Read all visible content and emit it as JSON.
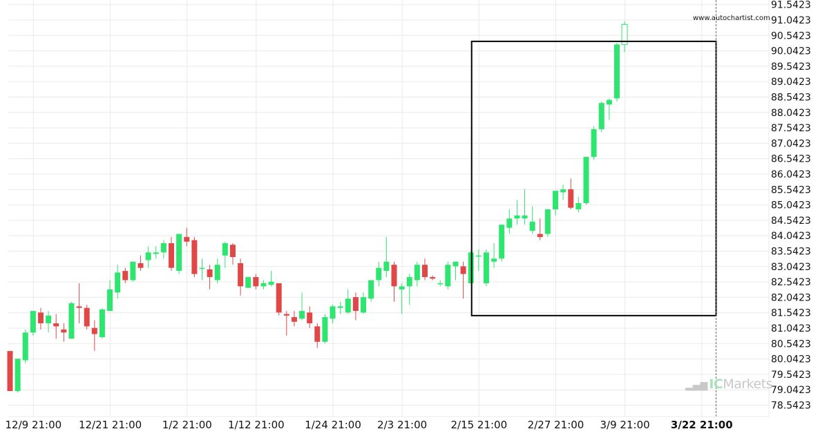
{
  "credit": "www.autochartist.com",
  "watermark": {
    "prefix": "IC",
    "suffix": "Markets",
    "bars": "▂▄▆"
  },
  "colors": {
    "up": "#2ee66f",
    "down": "#e04848",
    "grid": "#e9e9e9",
    "axis": "#222222",
    "box": "#000000"
  },
  "chart_data": {
    "type": "candlestick",
    "ylim": [
      78.2,
      91.9
    ],
    "y_ticks": [
      "78.5423",
      "79.0423",
      "79.5423",
      "80.0423",
      "80.5423",
      "81.0423",
      "81.5423",
      "82.0423",
      "82.5423",
      "83.0423",
      "83.5423",
      "84.0423",
      "84.5423",
      "85.0423",
      "85.5423",
      "86.0423",
      "86.5423",
      "87.0423",
      "87.5423",
      "88.0423",
      "88.5423",
      "89.0423",
      "89.5423",
      "90.0423",
      "90.5423",
      "91.0423",
      "91.5423"
    ],
    "x_ticks": [
      {
        "label": "12/9 21:00",
        "index": 3
      },
      {
        "label": "12/21 21:00",
        "index": 13
      },
      {
        "label": "1/2 21:00",
        "index": 23
      },
      {
        "label": "1/12 21:00",
        "index": 32
      },
      {
        "label": "1/24 21:00",
        "index": 42
      },
      {
        "label": "2/3 21:00",
        "index": 51
      },
      {
        "label": "2/15 21:00",
        "index": 61
      },
      {
        "label": "2/27 21:00",
        "index": 71
      },
      {
        "label": "3/9 21:00",
        "index": 80
      },
      {
        "label": "3/22 21:00",
        "index": 90,
        "bold": true
      }
    ],
    "pattern_box": {
      "start_index": 60,
      "end_index": 92,
      "low": 81.45,
      "high": 90.35
    },
    "current_index": 92,
    "candles": [
      {
        "o": 80.3,
        "h": 80.3,
        "l": 79.0,
        "c": 79.0
      },
      {
        "o": 79.0,
        "h": 80.05,
        "l": 78.95,
        "c": 80.05
      },
      {
        "o": 80.0,
        "h": 81.0,
        "l": 79.9,
        "c": 80.9
      },
      {
        "o": 80.9,
        "h": 81.6,
        "l": 80.8,
        "c": 81.6
      },
      {
        "o": 81.55,
        "h": 81.7,
        "l": 81.0,
        "c": 81.2
      },
      {
        "o": 81.2,
        "h": 81.6,
        "l": 80.9,
        "c": 81.45
      },
      {
        "o": 81.2,
        "h": 81.5,
        "l": 80.7,
        "c": 81.1
      },
      {
        "o": 81.0,
        "h": 81.2,
        "l": 80.6,
        "c": 80.9
      },
      {
        "o": 80.7,
        "h": 81.9,
        "l": 80.7,
        "c": 81.85
      },
      {
        "o": 81.75,
        "h": 82.5,
        "l": 81.2,
        "c": 81.7
      },
      {
        "o": 81.7,
        "h": 81.8,
        "l": 81.0,
        "c": 81.1
      },
      {
        "o": 81.05,
        "h": 81.3,
        "l": 80.3,
        "c": 80.85
      },
      {
        "o": 80.75,
        "h": 81.7,
        "l": 80.7,
        "c": 81.65
      },
      {
        "o": 81.6,
        "h": 82.6,
        "l": 81.6,
        "c": 82.3
      },
      {
        "o": 82.2,
        "h": 83.1,
        "l": 82.0,
        "c": 82.85
      },
      {
        "o": 82.9,
        "h": 83.0,
        "l": 82.5,
        "c": 82.6
      },
      {
        "o": 82.6,
        "h": 83.2,
        "l": 82.55,
        "c": 83.2
      },
      {
        "o": 83.15,
        "h": 83.4,
        "l": 82.9,
        "c": 83.0
      },
      {
        "o": 83.25,
        "h": 83.7,
        "l": 83.0,
        "c": 83.5
      },
      {
        "o": 83.45,
        "h": 83.7,
        "l": 83.3,
        "c": 83.5
      },
      {
        "o": 83.5,
        "h": 83.9,
        "l": 83.3,
        "c": 83.8
      },
      {
        "o": 83.8,
        "h": 84.0,
        "l": 82.9,
        "c": 83.0
      },
      {
        "o": 82.9,
        "h": 84.1,
        "l": 82.8,
        "c": 84.1
      },
      {
        "o": 84.0,
        "h": 84.3,
        "l": 83.7,
        "c": 83.85
      },
      {
        "o": 83.9,
        "h": 84.0,
        "l": 82.7,
        "c": 82.8
      },
      {
        "o": 83.0,
        "h": 83.3,
        "l": 82.6,
        "c": 83.0
      },
      {
        "o": 82.95,
        "h": 83.1,
        "l": 82.3,
        "c": 82.7
      },
      {
        "o": 82.6,
        "h": 83.3,
        "l": 82.5,
        "c": 83.1
      },
      {
        "o": 83.4,
        "h": 83.85,
        "l": 83.0,
        "c": 83.8
      },
      {
        "o": 83.75,
        "h": 83.8,
        "l": 83.1,
        "c": 83.35
      },
      {
        "o": 83.15,
        "h": 83.3,
        "l": 82.1,
        "c": 82.4
      },
      {
        "o": 82.35,
        "h": 82.7,
        "l": 82.35,
        "c": 82.7
      },
      {
        "o": 82.7,
        "h": 82.8,
        "l": 82.3,
        "c": 82.4
      },
      {
        "o": 82.4,
        "h": 82.6,
        "l": 82.3,
        "c": 82.5
      },
      {
        "o": 82.45,
        "h": 82.9,
        "l": 82.4,
        "c": 82.55
      },
      {
        "o": 82.5,
        "h": 82.5,
        "l": 81.45,
        "c": 81.55
      },
      {
        "o": 81.5,
        "h": 81.6,
        "l": 80.8,
        "c": 81.45
      },
      {
        "o": 81.4,
        "h": 81.6,
        "l": 81.1,
        "c": 81.25
      },
      {
        "o": 81.35,
        "h": 82.2,
        "l": 81.3,
        "c": 81.6
      },
      {
        "o": 81.55,
        "h": 81.75,
        "l": 81.05,
        "c": 81.2
      },
      {
        "o": 81.1,
        "h": 81.2,
        "l": 80.4,
        "c": 80.6
      },
      {
        "o": 80.6,
        "h": 81.5,
        "l": 80.55,
        "c": 81.4
      },
      {
        "o": 81.35,
        "h": 81.8,
        "l": 81.2,
        "c": 81.75
      },
      {
        "o": 81.7,
        "h": 81.9,
        "l": 81.5,
        "c": 81.75
      },
      {
        "o": 81.55,
        "h": 82.3,
        "l": 81.5,
        "c": 82.0
      },
      {
        "o": 82.05,
        "h": 82.2,
        "l": 81.3,
        "c": 81.6
      },
      {
        "o": 81.55,
        "h": 82.2,
        "l": 81.5,
        "c": 82.05
      },
      {
        "o": 82.0,
        "h": 82.6,
        "l": 81.9,
        "c": 82.6
      },
      {
        "o": 82.6,
        "h": 83.2,
        "l": 82.4,
        "c": 83.0
      },
      {
        "o": 82.9,
        "h": 84.0,
        "l": 82.7,
        "c": 83.2
      },
      {
        "o": 83.1,
        "h": 83.2,
        "l": 81.9,
        "c": 82.4
      },
      {
        "o": 82.3,
        "h": 82.5,
        "l": 81.5,
        "c": 82.4
      },
      {
        "o": 82.4,
        "h": 82.8,
        "l": 81.8,
        "c": 82.7
      },
      {
        "o": 82.6,
        "h": 83.2,
        "l": 82.4,
        "c": 83.1
      },
      {
        "o": 83.1,
        "h": 83.3,
        "l": 82.6,
        "c": 82.7
      },
      {
        "o": 82.7,
        "h": 82.75,
        "l": 82.6,
        "c": 82.65
      },
      {
        "o": 82.5,
        "h": 82.6,
        "l": 82.4,
        "c": 82.5
      },
      {
        "o": 82.4,
        "h": 83.2,
        "l": 82.3,
        "c": 83.1
      },
      {
        "o": 83.05,
        "h": 83.2,
        "l": 82.6,
        "c": 83.2
      },
      {
        "o": 83.05,
        "h": 83.2,
        "l": 82.0,
        "c": 82.8
      },
      {
        "o": 82.5,
        "h": 83.55,
        "l": 82.5,
        "c": 83.5
      },
      {
        "o": 83.4,
        "h": 83.6,
        "l": 82.9,
        "c": 83.4
      },
      {
        "o": 82.5,
        "h": 83.6,
        "l": 82.4,
        "c": 83.5
      },
      {
        "o": 83.2,
        "h": 83.8,
        "l": 83.0,
        "c": 83.3
      },
      {
        "o": 83.3,
        "h": 84.4,
        "l": 83.2,
        "c": 84.4
      },
      {
        "o": 84.3,
        "h": 84.9,
        "l": 84.1,
        "c": 84.6
      },
      {
        "o": 84.6,
        "h": 85.2,
        "l": 84.4,
        "c": 84.7
      },
      {
        "o": 84.6,
        "h": 85.55,
        "l": 84.4,
        "c": 84.7
      },
      {
        "o": 84.2,
        "h": 85.0,
        "l": 84.1,
        "c": 84.5
      },
      {
        "o": 84.1,
        "h": 84.6,
        "l": 83.9,
        "c": 84.0
      },
      {
        "o": 84.1,
        "h": 84.9,
        "l": 84.0,
        "c": 84.9
      },
      {
        "o": 84.9,
        "h": 85.5,
        "l": 84.7,
        "c": 85.5
      },
      {
        "o": 85.45,
        "h": 85.7,
        "l": 85.2,
        "c": 85.55
      },
      {
        "o": 85.55,
        "h": 85.9,
        "l": 84.9,
        "c": 84.95
      },
      {
        "o": 84.9,
        "h": 85.3,
        "l": 84.8,
        "c": 85.1
      },
      {
        "o": 85.1,
        "h": 86.6,
        "l": 85.05,
        "c": 86.6
      },
      {
        "o": 86.6,
        "h": 87.6,
        "l": 86.5,
        "c": 87.5
      },
      {
        "o": 87.5,
        "h": 88.4,
        "l": 87.4,
        "c": 88.35
      },
      {
        "o": 88.3,
        "h": 88.5,
        "l": 87.8,
        "c": 88.45
      },
      {
        "o": 88.5,
        "h": 90.3,
        "l": 88.4,
        "c": 90.25
      },
      {
        "o": 90.25,
        "h": 91.0,
        "l": 90.0,
        "c": 90.9
      }
    ]
  }
}
